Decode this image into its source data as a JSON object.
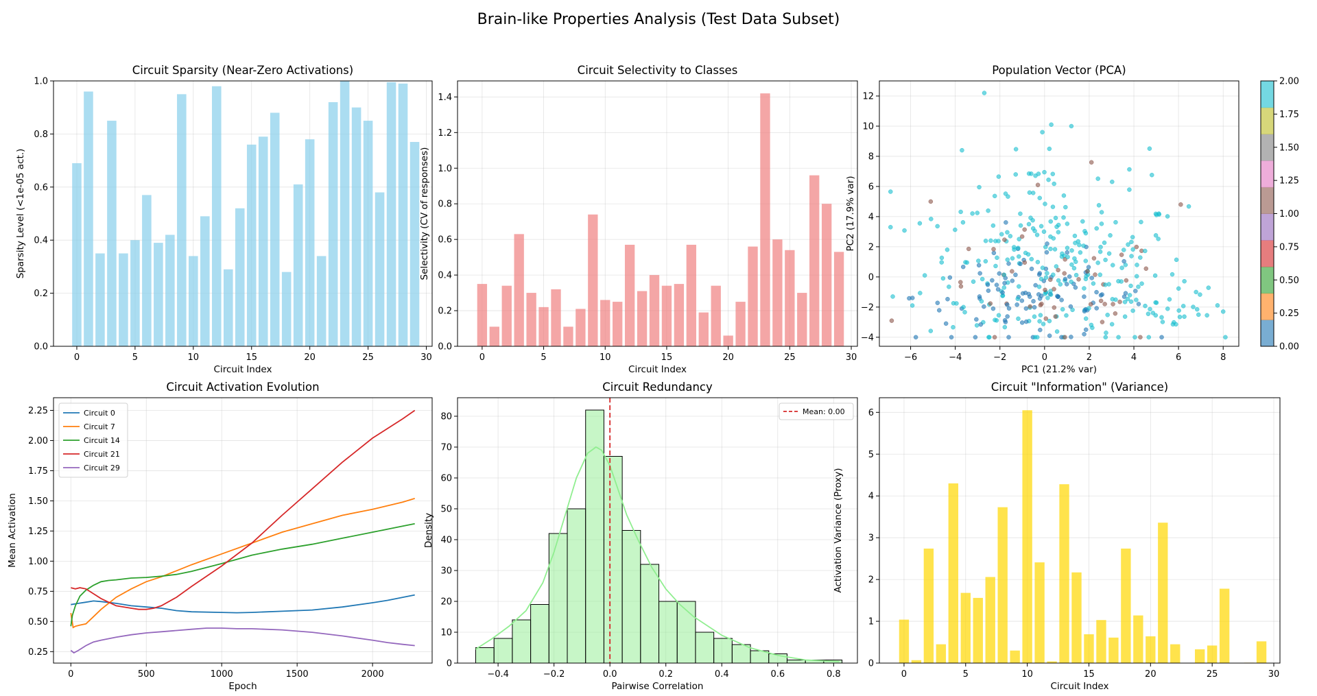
{
  "figure_title": "Brain-like Properties Analysis (Test Data Subset)",
  "chart_data": [
    {
      "id": "sparsity",
      "type": "bar",
      "title": "Circuit Sparsity (Near-Zero Activations)",
      "xlabel": "Circuit Index",
      "ylabel": "Sparsity Level (<1e-05 act.)",
      "color": "#87ceeb",
      "opacity": 0.7,
      "categories": [
        0,
        1,
        2,
        3,
        4,
        5,
        6,
        7,
        8,
        9,
        10,
        11,
        12,
        13,
        14,
        15,
        16,
        17,
        18,
        19,
        20,
        21,
        22,
        23,
        24,
        25,
        26,
        27,
        28,
        29
      ],
      "values": [
        0.69,
        0.96,
        0.35,
        0.85,
        0.35,
        0.4,
        0.57,
        0.39,
        0.42,
        0.95,
        0.34,
        0.49,
        0.98,
        0.29,
        0.52,
        0.76,
        0.79,
        0.88,
        0.28,
        0.61,
        0.78,
        0.34,
        0.92,
        1.0,
        0.9,
        0.85,
        0.58,
        0.995,
        0.99,
        0.77
      ],
      "xlim": [
        -2,
        30.5
      ],
      "ylim": [
        0,
        1.0
      ],
      "xticks": [
        0,
        5,
        10,
        15,
        20,
        25,
        30
      ],
      "yticks": [
        0.0,
        0.2,
        0.4,
        0.6,
        0.8,
        1.0
      ],
      "xticklabels": [
        "0",
        "5",
        "10",
        "15",
        "20",
        "25",
        "30"
      ],
      "yticklabels": [
        "0.0",
        "0.2",
        "0.4",
        "0.6",
        "0.8",
        "1.0"
      ],
      "grid": true
    },
    {
      "id": "selectivity",
      "type": "bar",
      "title": "Circuit Selectivity to Classes",
      "xlabel": "Circuit Index",
      "ylabel": "Selectivity (CV of responses)",
      "color": "#f08080",
      "opacity": 0.7,
      "categories": [
        0,
        1,
        2,
        3,
        4,
        5,
        6,
        7,
        8,
        9,
        10,
        11,
        12,
        13,
        14,
        15,
        16,
        17,
        18,
        19,
        20,
        21,
        22,
        23,
        24,
        25,
        26,
        27,
        28,
        29
      ],
      "values": [
        0.35,
        0.11,
        0.34,
        0.63,
        0.3,
        0.22,
        0.32,
        0.11,
        0.21,
        0.74,
        0.26,
        0.25,
        0.57,
        0.31,
        0.4,
        0.34,
        0.35,
        0.57,
        0.19,
        0.34,
        0.06,
        0.25,
        0.56,
        1.42,
        0.6,
        0.54,
        0.3,
        0.96,
        0.8,
        0.53
      ],
      "xlim": [
        -2,
        30.5
      ],
      "ylim": [
        0,
        1.49
      ],
      "xticks": [
        0,
        5,
        10,
        15,
        20,
        25,
        30
      ],
      "yticks": [
        0.0,
        0.2,
        0.4,
        0.6,
        0.8,
        1.0,
        1.2,
        1.4
      ],
      "xticklabels": [
        "0",
        "5",
        "10",
        "15",
        "20",
        "25",
        "30"
      ],
      "yticklabels": [
        "0.0",
        "0.2",
        "0.4",
        "0.6",
        "0.8",
        "1.0",
        "1.2",
        "1.4"
      ],
      "grid": true
    },
    {
      "id": "pca",
      "type": "scatter",
      "title": "Population Vector (PCA)",
      "xlabel": "PC1 (21.2% var)",
      "ylabel": "PC2 (17.9% var)",
      "xlim": [
        -7.4,
        8.7
      ],
      "ylim": [
        -4.6,
        13.0
      ],
      "xticks": [
        -6,
        -4,
        -2,
        0,
        2,
        4,
        6,
        8
      ],
      "yticks": [
        -4,
        -2,
        0,
        2,
        4,
        6,
        8,
        10,
        12
      ],
      "xticklabels": [
        "−6",
        "−4",
        "−2",
        "0",
        "2",
        "4",
        "6",
        "8"
      ],
      "yticklabels": [
        "−4",
        "−2",
        "0",
        "2",
        "4",
        "6",
        "8",
        "10",
        "12"
      ],
      "colormap": [
        "#1f77b4",
        "#ff7f0e",
        "#2ca02c",
        "#d62728",
        "#9467bd",
        "#8c564b",
        "#e377c2",
        "#7f7f7f",
        "#bcbd22",
        "#17becf"
      ],
      "colorbar_ticks": [
        "0.00",
        "0.25",
        "0.50",
        "0.75",
        "1.00",
        "1.25",
        "1.50",
        "1.75",
        "2.00"
      ],
      "class_values": [
        0,
        1,
        2
      ],
      "class_colors": [
        "#1f77b4",
        "#8c564b",
        "#17becf"
      ],
      "opacity": 0.6,
      "grid": true,
      "clusters": [
        {
          "class": 2,
          "n": 210,
          "cx": 0.6,
          "cy": 0.3,
          "sx": 3.0,
          "sy": 2.6
        },
        {
          "class": 2,
          "n": 45,
          "cx": -0.2,
          "cy": 5.2,
          "sx": 2.4,
          "sy": 1.9
        },
        {
          "class": 2,
          "n": 25,
          "cx": 5.8,
          "cy": -2.4,
          "sx": 1.1,
          "sy": 0.6
        },
        {
          "class": 0,
          "n": 105,
          "cx": -0.6,
          "cy": -1.3,
          "sx": 2.6,
          "sy": 1.5
        },
        {
          "class": 1,
          "n": 45,
          "cx": 0.3,
          "cy": -1.1,
          "sx": 2.7,
          "sy": 2.0
        }
      ],
      "outliers": [
        {
          "x": -2.7,
          "y": 12.2,
          "class": 2
        },
        {
          "x": 0.3,
          "y": 10.1,
          "class": 2
        },
        {
          "x": 1.2,
          "y": 10.0,
          "class": 2
        },
        {
          "x": -0.1,
          "y": 9.6,
          "class": 2
        },
        {
          "x": -3.7,
          "y": 8.4,
          "class": 2
        },
        {
          "x": 2.1,
          "y": 7.6,
          "class": 1
        },
        {
          "x": 6.1,
          "y": 4.8,
          "class": 1
        },
        {
          "x": -0.3,
          "y": 6.1,
          "class": 1
        },
        {
          "x": -5.1,
          "y": 5.0,
          "class": 1
        },
        {
          "x": 8.0,
          "y": -2.3,
          "class": 2
        },
        {
          "x": -6.8,
          "y": -1.3,
          "class": 2
        }
      ]
    },
    {
      "id": "evolution",
      "type": "line",
      "title": "Circuit Activation Evolution",
      "xlabel": "Epoch",
      "ylabel": "Mean Activation",
      "xlim": [
        -115,
        2395
      ],
      "ylim": [
        0.155,
        2.355
      ],
      "xticks": [
        0,
        500,
        1000,
        1500,
        2000
      ],
      "yticks": [
        0.25,
        0.5,
        0.75,
        1.0,
        1.25,
        1.5,
        1.75,
        2.0,
        2.25
      ],
      "xticklabels": [
        "0",
        "500",
        "1000",
        "1500",
        "2000"
      ],
      "yticklabels": [
        "0.25",
        "0.50",
        "0.75",
        "1.00",
        "1.25",
        "1.50",
        "1.75",
        "2.00",
        "2.25"
      ],
      "legend_position": "upper-left",
      "grid": true,
      "series": [
        {
          "name": "Circuit 0",
          "color": "#1f77b4",
          "x": [
            0,
            50,
            100,
            150,
            200,
            300,
            400,
            500,
            600,
            700,
            800,
            1000,
            1100,
            1200,
            1400,
            1600,
            1800,
            2000,
            2100,
            2200,
            2280
          ],
          "y": [
            0.64,
            0.65,
            0.66,
            0.67,
            0.665,
            0.65,
            0.63,
            0.62,
            0.61,
            0.59,
            0.58,
            0.575,
            0.572,
            0.575,
            0.585,
            0.595,
            0.62,
            0.655,
            0.675,
            0.7,
            0.72
          ]
        },
        {
          "name": "Circuit 7",
          "color": "#ff7f0e",
          "x": [
            0,
            15,
            30,
            60,
            100,
            150,
            200,
            300,
            400,
            500,
            600,
            700,
            800,
            1000,
            1200,
            1400,
            1600,
            1800,
            2000,
            2200,
            2280
          ],
          "y": [
            0.57,
            0.45,
            0.46,
            0.47,
            0.48,
            0.54,
            0.6,
            0.7,
            0.77,
            0.83,
            0.87,
            0.92,
            0.97,
            1.06,
            1.15,
            1.24,
            1.31,
            1.38,
            1.43,
            1.49,
            1.52
          ]
        },
        {
          "name": "Circuit 14",
          "color": "#2ca02c",
          "x": [
            0,
            10,
            30,
            60,
            100,
            150,
            200,
            250,
            300,
            400,
            500,
            600,
            700,
            800,
            1000,
            1200,
            1400,
            1600,
            1800,
            2000,
            2200,
            2280
          ],
          "y": [
            0.46,
            0.55,
            0.63,
            0.71,
            0.76,
            0.8,
            0.83,
            0.84,
            0.845,
            0.86,
            0.865,
            0.875,
            0.89,
            0.915,
            0.98,
            1.05,
            1.1,
            1.14,
            1.19,
            1.24,
            1.29,
            1.31
          ]
        },
        {
          "name": "Circuit 21",
          "color": "#d62728",
          "x": [
            0,
            30,
            60,
            100,
            150,
            200,
            250,
            300,
            400,
            450,
            500,
            550,
            600,
            700,
            800,
            1000,
            1200,
            1400,
            1600,
            1800,
            2000,
            2200,
            2280
          ],
          "y": [
            0.78,
            0.77,
            0.78,
            0.77,
            0.73,
            0.69,
            0.66,
            0.63,
            0.61,
            0.6,
            0.6,
            0.61,
            0.63,
            0.7,
            0.79,
            0.96,
            1.15,
            1.38,
            1.6,
            1.82,
            2.02,
            2.18,
            2.25
          ]
        },
        {
          "name": "Circuit 29",
          "color": "#9467bd",
          "x": [
            0,
            20,
            50,
            100,
            150,
            200,
            300,
            400,
            500,
            600,
            700,
            800,
            900,
            1000,
            1100,
            1200,
            1400,
            1600,
            1800,
            2000,
            2100,
            2200,
            2280
          ],
          "y": [
            0.26,
            0.24,
            0.26,
            0.3,
            0.33,
            0.345,
            0.37,
            0.39,
            0.405,
            0.415,
            0.425,
            0.435,
            0.445,
            0.445,
            0.44,
            0.44,
            0.43,
            0.41,
            0.38,
            0.345,
            0.325,
            0.31,
            0.3
          ]
        }
      ]
    },
    {
      "id": "redundancy",
      "type": "histogram",
      "title": "Circuit Redundancy",
      "xlabel": "Pairwise Correlation",
      "ylabel": "Density",
      "xlim": [
        -0.545,
        0.885
      ],
      "ylim": [
        0,
        86
      ],
      "xticks": [
        -0.4,
        -0.2,
        0.0,
        0.2,
        0.4,
        0.6,
        0.8
      ],
      "yticks": [
        0,
        10,
        20,
        30,
        40,
        50,
        60,
        70,
        80
      ],
      "xticklabels": [
        "−0.4",
        "−0.2",
        "0.0",
        "0.2",
        "0.4",
        "0.6",
        "0.8"
      ],
      "yticklabels": [
        "0",
        "10",
        "20",
        "30",
        "40",
        "50",
        "60",
        "70",
        "80"
      ],
      "bar_color": "#90ee90",
      "bar_opacity": 0.5,
      "bin_start": -0.48,
      "bin_width": 0.0655,
      "counts": [
        5,
        8,
        14,
        19,
        42,
        50,
        82,
        67,
        43,
        32,
        20,
        20,
        10,
        8,
        6,
        4,
        3,
        1,
        1,
        1
      ],
      "kde_color": "#90ee90",
      "kde_x": [
        -0.48,
        -0.42,
        -0.36,
        -0.3,
        -0.24,
        -0.2,
        -0.16,
        -0.12,
        -0.08,
        -0.05,
        -0.03,
        0.0,
        0.03,
        0.06,
        0.1,
        0.15,
        0.2,
        0.25,
        0.3,
        0.4,
        0.5,
        0.6,
        0.7,
        0.82
      ],
      "kde_y": [
        4.5,
        8,
        12,
        17,
        26,
        36,
        48,
        60,
        68,
        70,
        69,
        64,
        56,
        48,
        40,
        31,
        24,
        19,
        15,
        9,
        5,
        2.5,
        1,
        0.5
      ],
      "mean_value": 0.0,
      "mean_color": "#d62728",
      "legend_label": "Mean: 0.00",
      "legend_position": "upper-right",
      "grid": true
    },
    {
      "id": "information",
      "type": "bar",
      "title": "Circuit \"Information\" (Variance)",
      "xlabel": "Circuit Index",
      "ylabel": "Activation Variance (Proxy)",
      "color": "#ffd700",
      "opacity": 0.7,
      "categories": [
        0,
        1,
        2,
        3,
        4,
        5,
        6,
        7,
        8,
        9,
        10,
        11,
        12,
        13,
        14,
        15,
        16,
        17,
        18,
        19,
        20,
        21,
        22,
        23,
        24,
        25,
        26,
        27,
        28,
        29
      ],
      "values": [
        1.04,
        0.07,
        2.74,
        0.45,
        4.3,
        1.68,
        1.56,
        2.06,
        3.73,
        0.3,
        6.05,
        2.41,
        0.04,
        4.28,
        2.17,
        0.69,
        1.03,
        0.61,
        2.74,
        1.14,
        0.64,
        3.36,
        0.45,
        0.0,
        0.33,
        0.42,
        1.78,
        0.0,
        0.01,
        0.52
      ],
      "xlim": [
        -2,
        30.5
      ],
      "ylim": [
        0,
        6.35
      ],
      "xticks": [
        0,
        5,
        10,
        15,
        20,
        25,
        30
      ],
      "yticks": [
        0,
        1,
        2,
        3,
        4,
        5,
        6
      ],
      "xticklabels": [
        "0",
        "5",
        "10",
        "15",
        "20",
        "25",
        "30"
      ],
      "yticklabels": [
        "0",
        "1",
        "2",
        "3",
        "4",
        "5",
        "6"
      ],
      "grid": true
    }
  ]
}
